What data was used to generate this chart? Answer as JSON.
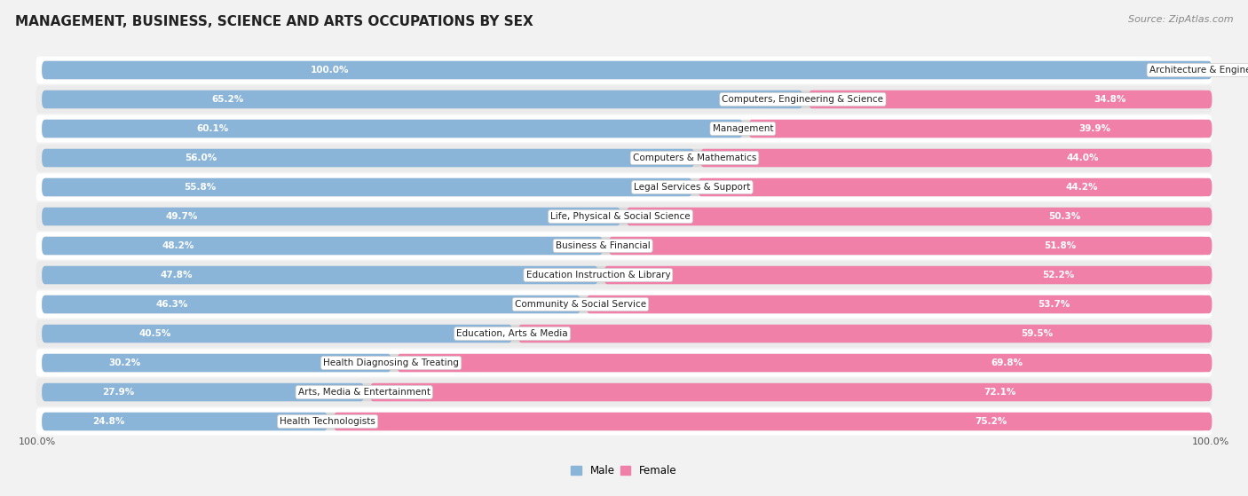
{
  "title": "MANAGEMENT, BUSINESS, SCIENCE AND ARTS OCCUPATIONS BY SEX",
  "source": "Source: ZipAtlas.com",
  "categories": [
    "Architecture & Engineering",
    "Computers, Engineering & Science",
    "Management",
    "Computers & Mathematics",
    "Legal Services & Support",
    "Life, Physical & Social Science",
    "Business & Financial",
    "Education Instruction & Library",
    "Community & Social Service",
    "Education, Arts & Media",
    "Health Diagnosing & Treating",
    "Arts, Media & Entertainment",
    "Health Technologists"
  ],
  "male_pct": [
    100.0,
    65.2,
    60.1,
    56.0,
    55.8,
    49.7,
    48.2,
    47.8,
    46.3,
    40.5,
    30.2,
    27.9,
    24.8
  ],
  "female_pct": [
    0.0,
    34.8,
    39.9,
    44.0,
    44.2,
    50.3,
    51.8,
    52.2,
    53.7,
    59.5,
    69.8,
    72.1,
    75.2
  ],
  "male_color": "#8ab4d8",
  "female_color": "#f080a8",
  "bg_color": "#f2f2f2",
  "row_colors": [
    "#ffffff",
    "#ebebeb"
  ],
  "track_color": "#d8d8d8",
  "title_fontsize": 11,
  "source_fontsize": 8,
  "label_fontsize": 7.5,
  "bar_label_fontsize": 7.5,
  "legend_fontsize": 8.5,
  "axis_label": "100.0%"
}
